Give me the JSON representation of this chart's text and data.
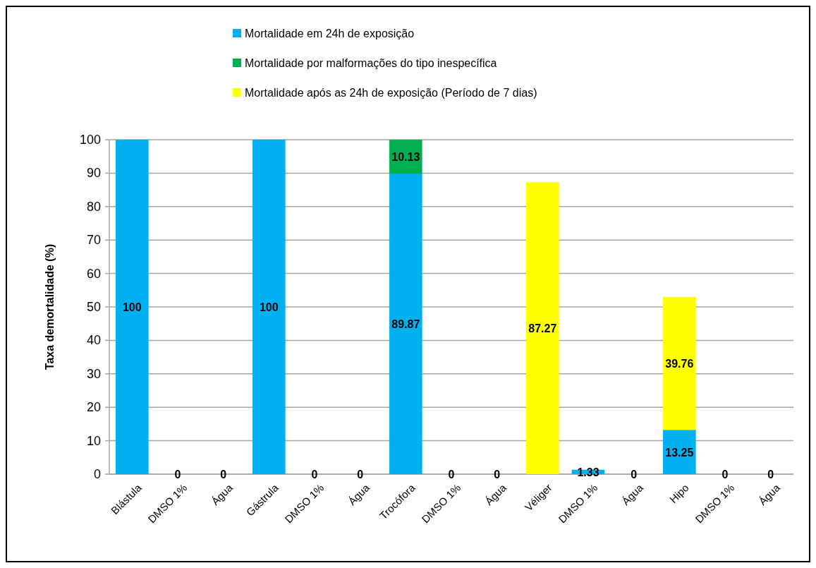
{
  "chart_data": {
    "type": "bar",
    "stacked": true,
    "ylabel": "Taxa demortalidade (%)",
    "categories": [
      "Blástula",
      "DMSO 1%",
      "Água",
      "Gástrula",
      "DMSO 1%",
      "Água",
      "Trocófora",
      "DMSO 1%",
      "Água",
      "Véliger",
      "DMSO 1%",
      "Água",
      "Hipo",
      "DMSO 1%",
      "Água"
    ],
    "series": [
      {
        "name": "Mortalidade em 24h de exposição",
        "color": "#00b0f0",
        "values": [
          100,
          0,
          0,
          100,
          0,
          0,
          89.87,
          0,
          0,
          0,
          1.33,
          0,
          13.25,
          0,
          0
        ],
        "value_labels": [
          "100",
          null,
          null,
          "100",
          null,
          null,
          "89.87",
          null,
          null,
          null,
          "1.33",
          null,
          "13.25",
          null,
          null
        ]
      },
      {
        "name": "Mortalidade por malformações do tipo inespecífica",
        "color": "#00b050",
        "values": [
          0,
          0,
          0,
          0,
          0,
          0,
          10.13,
          0,
          0,
          0,
          0,
          0,
          0,
          0,
          0
        ],
        "value_labels": [
          null,
          null,
          null,
          null,
          null,
          null,
          "10.13",
          null,
          null,
          null,
          null,
          null,
          null,
          null,
          null
        ]
      },
      {
        "name": "Mortalidade após as 24h de exposição (Período de 7 dias)",
        "color": "#ffff00",
        "values": [
          0,
          0,
          0,
          0,
          0,
          0,
          0,
          0,
          0,
          87.27,
          0,
          0,
          39.76,
          0,
          0
        ],
        "value_labels": [
          null,
          "0",
          "0",
          null,
          "0",
          "0",
          null,
          "0",
          "0",
          "87.27",
          null,
          "0",
          "39.76",
          "0",
          "0"
        ]
      }
    ],
    "ylim": [
      0,
      100
    ],
    "yticks": [
      0,
      10,
      20,
      30,
      40,
      50,
      60,
      70,
      80,
      90,
      100
    ],
    "grid": "y",
    "legend": "top"
  }
}
